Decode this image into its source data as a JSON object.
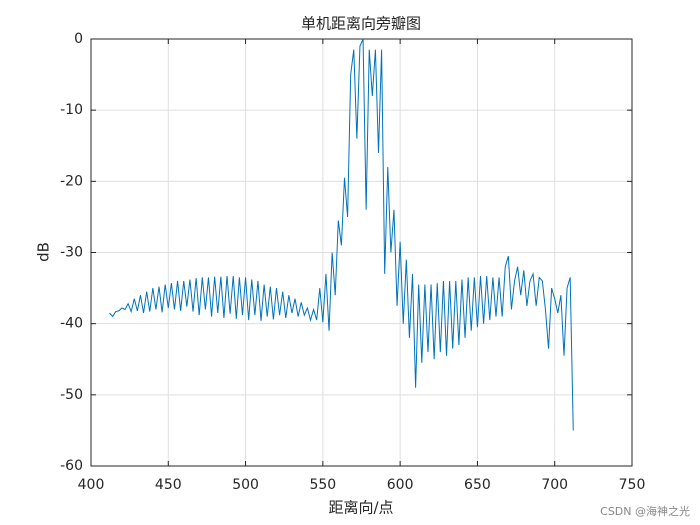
{
  "chart_data": {
    "type": "line",
    "title": "单机距离向旁瓣图",
    "x_label": "距离向/点",
    "y_label": "dB",
    "watermark": "CSDN @海神之光",
    "color": "#0072bd",
    "grid": true,
    "xlim": [
      400,
      750
    ],
    "xticks": [
      400,
      450,
      500,
      550,
      600,
      650,
      700,
      750
    ],
    "ylim": [
      -60,
      0
    ],
    "yticks": [
      -60,
      -50,
      -40,
      -30,
      -20,
      -10,
      0
    ],
    "x": [
      412,
      414,
      416,
      418,
      420,
      422,
      424,
      426,
      428,
      430,
      432,
      434,
      436,
      438,
      440,
      442,
      444,
      446,
      448,
      450,
      452,
      454,
      456,
      458,
      460,
      462,
      464,
      466,
      468,
      470,
      472,
      474,
      476,
      478,
      480,
      482,
      484,
      486,
      488,
      490,
      492,
      494,
      496,
      498,
      500,
      502,
      504,
      506,
      508,
      510,
      512,
      514,
      516,
      518,
      520,
      522,
      524,
      526,
      528,
      530,
      532,
      534,
      536,
      538,
      540,
      542,
      544,
      546,
      548,
      550,
      552,
      554,
      556,
      558,
      560,
      562,
      564,
      566,
      568,
      570,
      572,
      574,
      576,
      578,
      580,
      582,
      584,
      586,
      588,
      590,
      592,
      594,
      596,
      598,
      600,
      602,
      604,
      606,
      608,
      610,
      612,
      614,
      616,
      618,
      620,
      622,
      624,
      626,
      628,
      630,
      632,
      634,
      636,
      638,
      640,
      642,
      644,
      646,
      648,
      650,
      652,
      654,
      656,
      658,
      660,
      662,
      664,
      666,
      668,
      670,
      672,
      674,
      676,
      678,
      680,
      682,
      684,
      686,
      688,
      690,
      692,
      694,
      696,
      698,
      700,
      702,
      704,
      706,
      708,
      710,
      712
    ],
    "values": [
      -38.5,
      -39,
      -38.3,
      -38.2,
      -37.8,
      -38,
      -37.2,
      -38.3,
      -36.5,
      -38.2,
      -36,
      -38.5,
      -35.5,
      -38.3,
      -35,
      -38,
      -34.8,
      -38.4,
      -34.5,
      -37.8,
      -34.3,
      -38,
      -34,
      -38.2,
      -34,
      -37.6,
      -33.8,
      -38.3,
      -33.6,
      -38.8,
      -33.5,
      -38,
      -33.5,
      -39,
      -33.4,
      -38.5,
      -33.4,
      -39.2,
      -33.3,
      -38.6,
      -33.3,
      -39.3,
      -33.5,
      -38.8,
      -33.5,
      -39.5,
      -33.8,
      -38.8,
      -34,
      -39.6,
      -34.5,
      -39,
      -34.8,
      -39.4,
      -35,
      -38.8,
      -35.5,
      -39.2,
      -36,
      -38.5,
      -36.5,
      -39,
      -37,
      -38.8,
      -37.8,
      -39.5,
      -38,
      -39.5,
      -35,
      -39.8,
      -33,
      -41,
      -30,
      -36,
      -25.5,
      -29,
      -19.5,
      -25,
      -5,
      -1.5,
      -14,
      -1,
      0,
      -24,
      -1.5,
      -8,
      -1.5,
      -16,
      -1.5,
      -33,
      -18,
      -30,
      -24,
      -37.5,
      -28.5,
      -40,
      -31,
      -42,
      -33,
      -49,
      -34.5,
      -45.5,
      -34.5,
      -44,
      -34.5,
      -45,
      -34.3,
      -44,
      -34,
      -44.5,
      -34,
      -43.5,
      -34,
      -43,
      -33.8,
      -42,
      -33.5,
      -41,
      -33.5,
      -40.5,
      -33.3,
      -40,
      -33.3,
      -39.5,
      -33.5,
      -39,
      -33.5,
      -39,
      -32,
      -30.5,
      -38,
      -34,
      -32,
      -36,
      -32.5,
      -37.5,
      -34,
      -33,
      -37.5,
      -33.5,
      -34,
      -38,
      -43.5,
      -35,
      -36.5,
      -38.5,
      -36,
      -44.5,
      -35,
      -33.5,
      -55
    ]
  }
}
